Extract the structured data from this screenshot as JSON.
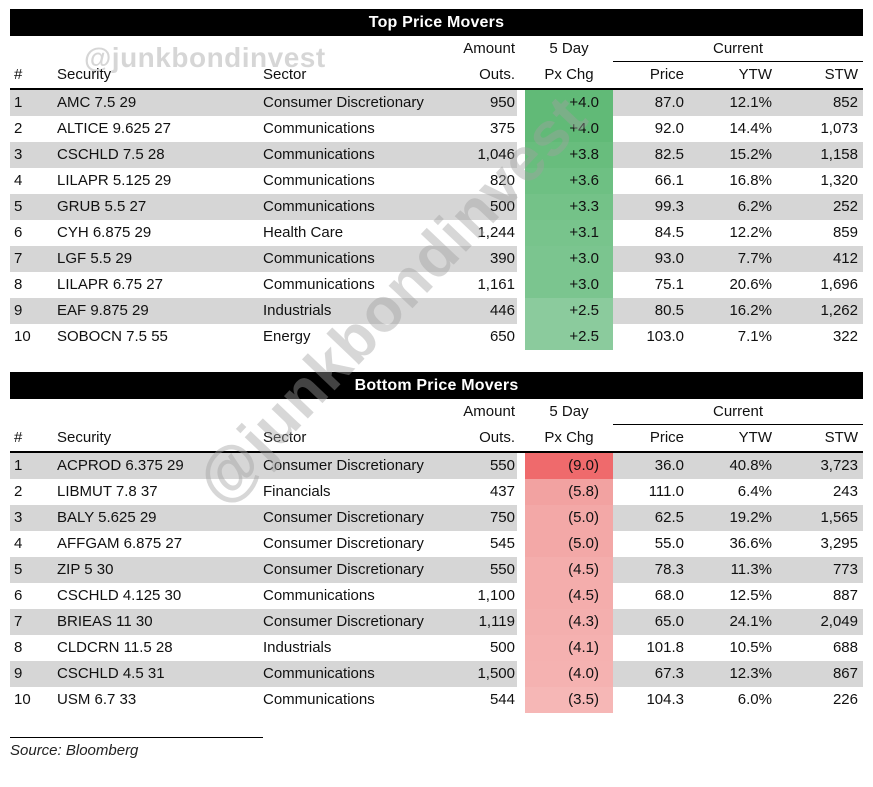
{
  "watermark": "@junkbondinvest",
  "source_note": "Source: Bloomberg",
  "colors": {
    "title_bar_bg": "#000000",
    "title_bar_text": "#ffffff",
    "row_stripe": "#d6d6d6",
    "positive_strongest": "#61ba77",
    "positive_weakest": "#8bcb9d",
    "negative_strongest": "#ef6a6c",
    "negative_weakest": "#f6b7b6"
  },
  "chart_data": [
    {
      "type": "table",
      "title": "Top Price Movers",
      "headers": {
        "num": "#",
        "security": "Security",
        "sector": "Sector",
        "amount1": "Amount",
        "amount2": "Outs.",
        "chg1": "5 Day",
        "chg2": "Px Chg",
        "current": "Current",
        "price": "Price",
        "ytw": "YTW",
        "stw": "STW"
      },
      "rows": [
        {
          "num": "1",
          "security": "AMC 7.5 29",
          "sector": "Consumer Discretionary",
          "amount": "950",
          "chg": "+4.0",
          "chg_color": "#61ba77",
          "price": "87.0",
          "ytw": "12.1%",
          "stw": "852"
        },
        {
          "num": "2",
          "security": "ALTICE 9.625 27",
          "sector": "Communications",
          "amount": "375",
          "chg": "+4.0",
          "chg_color": "#61ba77",
          "price": "92.0",
          "ytw": "14.4%",
          "stw": "1,073"
        },
        {
          "num": "3",
          "security": "CSCHLD 7.5 28",
          "sector": "Communications",
          "amount": "1,046",
          "chg": "+3.8",
          "chg_color": "#68bd7d",
          "price": "82.5",
          "ytw": "15.2%",
          "stw": "1,158"
        },
        {
          "num": "4",
          "security": "LILAPR 5.125 29",
          "sector": "Communications",
          "amount": "820",
          "chg": "+3.6",
          "chg_color": "#6ec083",
          "price": "66.1",
          "ytw": "16.8%",
          "stw": "1,320"
        },
        {
          "num": "5",
          "security": "GRUB 5.5 27",
          "sector": "Communications",
          "amount": "500",
          "chg": "+3.3",
          "chg_color": "#74c288",
          "price": "99.3",
          "ytw": "6.2%",
          "stw": "252"
        },
        {
          "num": "6",
          "security": "CYH 6.875 29",
          "sector": "Health Care",
          "amount": "1,244",
          "chg": "+3.1",
          "chg_color": "#78c48c",
          "price": "84.5",
          "ytw": "12.2%",
          "stw": "859"
        },
        {
          "num": "7",
          "security": "LGF 5.5 29",
          "sector": "Communications",
          "amount": "390",
          "chg": "+3.0",
          "chg_color": "#7bc58f",
          "price": "93.0",
          "ytw": "7.7%",
          "stw": "412"
        },
        {
          "num": "8",
          "security": "LILAPR 6.75 27",
          "sector": "Communications",
          "amount": "1,161",
          "chg": "+3.0",
          "chg_color": "#7bc58f",
          "price": "75.1",
          "ytw": "20.6%",
          "stw": "1,696"
        },
        {
          "num": "9",
          "security": "EAF 9.875 29",
          "sector": "Industrials",
          "amount": "446",
          "chg": "+2.5",
          "chg_color": "#8bcb9d",
          "price": "80.5",
          "ytw": "16.2%",
          "stw": "1,262"
        },
        {
          "num": "10",
          "security": "SOBOCN 7.5 55",
          "sector": "Energy",
          "amount": "650",
          "chg": "+2.5",
          "chg_color": "#8bcb9d",
          "price": "103.0",
          "ytw": "7.1%",
          "stw": "322"
        }
      ]
    },
    {
      "type": "table",
      "title": "Bottom Price Movers",
      "headers": {
        "num": "#",
        "security": "Security",
        "sector": "Sector",
        "amount1": "Amount",
        "amount2": "Outs.",
        "chg1": "5 Day",
        "chg2": "Px Chg",
        "current": "Current",
        "price": "Price",
        "ytw": "YTW",
        "stw": "STW"
      },
      "rows": [
        {
          "num": "1",
          "security": "ACPROD 6.375 29",
          "sector": "Consumer Discretionary",
          "amount": "550",
          "chg": "(9.0)",
          "chg_color": "#ef6a6c",
          "price": "36.0",
          "ytw": "40.8%",
          "stw": "3,723"
        },
        {
          "num": "2",
          "security": "LIBMUT 7.8 37",
          "sector": "Financials",
          "amount": "437",
          "chg": "(5.8)",
          "chg_color": "#f2a2a1",
          "price": "111.0",
          "ytw": "6.4%",
          "stw": "243"
        },
        {
          "num": "3",
          "security": "BALY 5.625 29",
          "sector": "Consumer Discretionary",
          "amount": "750",
          "chg": "(5.0)",
          "chg_color": "#f3a8a7",
          "price": "62.5",
          "ytw": "19.2%",
          "stw": "1,565"
        },
        {
          "num": "4",
          "security": "AFFGAM 6.875 27",
          "sector": "Consumer Discretionary",
          "amount": "545",
          "chg": "(5.0)",
          "chg_color": "#f3a8a7",
          "price": "55.0",
          "ytw": "36.6%",
          "stw": "3,295"
        },
        {
          "num": "5",
          "security": "ZIP 5 30",
          "sector": "Consumer Discretionary",
          "amount": "550",
          "chg": "(4.5)",
          "chg_color": "#f4adac",
          "price": "78.3",
          "ytw": "11.3%",
          "stw": "773"
        },
        {
          "num": "6",
          "security": "CSCHLD 4.125 30",
          "sector": "Communications",
          "amount": "1,100",
          "chg": "(4.5)",
          "chg_color": "#f4adac",
          "price": "68.0",
          "ytw": "12.5%",
          "stw": "887"
        },
        {
          "num": "7",
          "security": "BRIEAS 11 30",
          "sector": "Consumer Discretionary",
          "amount": "1,119",
          "chg": "(4.3)",
          "chg_color": "#f4afae",
          "price": "65.0",
          "ytw": "24.1%",
          "stw": "2,049"
        },
        {
          "num": "8",
          "security": "CLDCRN 11.5 28",
          "sector": "Industrials",
          "amount": "500",
          "chg": "(4.1)",
          "chg_color": "#f5b1b0",
          "price": "101.8",
          "ytw": "10.5%",
          "stw": "688"
        },
        {
          "num": "9",
          "security": "CSCHLD 4.5 31",
          "sector": "Communications",
          "amount": "1,500",
          "chg": "(4.0)",
          "chg_color": "#f5b2b1",
          "price": "67.3",
          "ytw": "12.3%",
          "stw": "867"
        },
        {
          "num": "10",
          "security": "USM 6.7 33",
          "sector": "Communications",
          "amount": "544",
          "chg": "(3.5)",
          "chg_color": "#f6b7b6",
          "price": "104.3",
          "ytw": "6.0%",
          "stw": "226"
        }
      ]
    }
  ]
}
